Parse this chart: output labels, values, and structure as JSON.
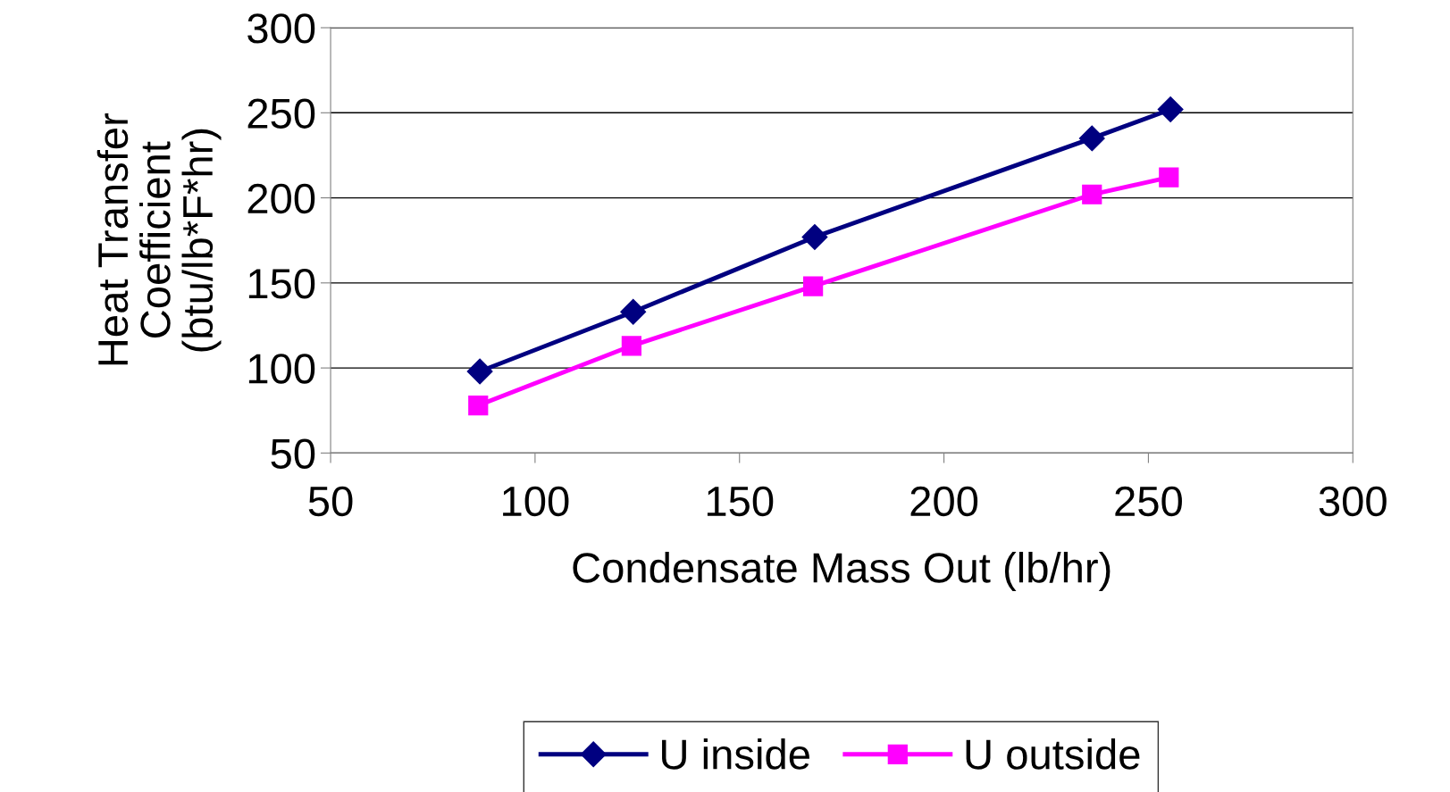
{
  "chart_data": {
    "type": "line",
    "xlabel": "Condensate Mass Out (lb/hr)",
    "ylabel": "Heat Transfer\nCoefficient\n(btu/lb*F*hr)",
    "xlim": [
      50,
      300
    ],
    "xticks": [
      50,
      100,
      150,
      200,
      250,
      300
    ],
    "ylim": [
      50,
      300
    ],
    "yticks": [
      50,
      100,
      150,
      200,
      250,
      300
    ],
    "grid": "y",
    "legend": "bottom",
    "series": [
      {
        "name": "U inside",
        "color": "#000080",
        "marker": "diamond",
        "x": [
          86.5,
          124,
          168.4,
          236.2,
          255.4
        ],
        "values": [
          98,
          133,
          177,
          235,
          252
        ]
      },
      {
        "name": "U outside",
        "color": "#ff00ff",
        "marker": "square",
        "x": [
          86.1,
          123.6,
          168,
          236.2,
          255
        ],
        "values": [
          78,
          113,
          148,
          202,
          212
        ]
      }
    ]
  }
}
